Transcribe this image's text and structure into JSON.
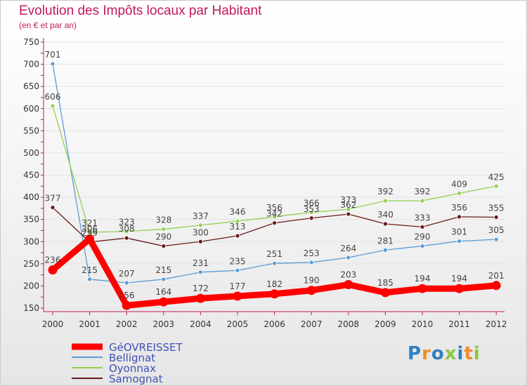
{
  "chart_data": {
    "type": "line",
    "title": "Evolution des Impôts locaux par Habitant",
    "subtitle": "(en € et par an)",
    "categories": [
      "2000",
      "2001",
      "2002",
      "2003",
      "2004",
      "2005",
      "2006",
      "2007",
      "2008",
      "2009",
      "2010",
      "2011",
      "2012"
    ],
    "yticks": [
      150,
      200,
      250,
      300,
      350,
      400,
      450,
      500,
      550,
      600,
      650,
      700,
      750
    ],
    "ylim": [
      150,
      750
    ],
    "series": [
      {
        "name": "GéOVREISSET",
        "color": "#ff0000",
        "values": [
          236,
          306,
          156,
          164,
          172,
          177,
          182,
          190,
          203,
          185,
          194,
          194,
          201
        ]
      },
      {
        "name": "Bellignat",
        "color": "#5b9bd5",
        "values": [
          701,
          215,
          207,
          215,
          231,
          235,
          251,
          253,
          264,
          281,
          290,
          301,
          305
        ]
      },
      {
        "name": "Oyonnax",
        "color": "#92d050",
        "values": [
          606,
          321,
          323,
          328,
          337,
          346,
          356,
          366,
          373,
          392,
          392,
          409,
          425
        ]
      },
      {
        "name": "Samognat",
        "color": "#6b1a1a",
        "values": [
          377,
          299,
          308,
          290,
          300,
          313,
          342,
          353,
          362,
          340,
          333,
          356,
          355
        ]
      }
    ]
  },
  "logo": {
    "letters": [
      "P",
      "r",
      "o",
      "x",
      "i",
      "t",
      "i"
    ],
    "colors": [
      "#2f7fc1",
      "#f28c28",
      "#2f7fc1",
      "#8dc63f",
      "#2f7fc1",
      "#f28c28",
      "#8dc63f"
    ]
  }
}
